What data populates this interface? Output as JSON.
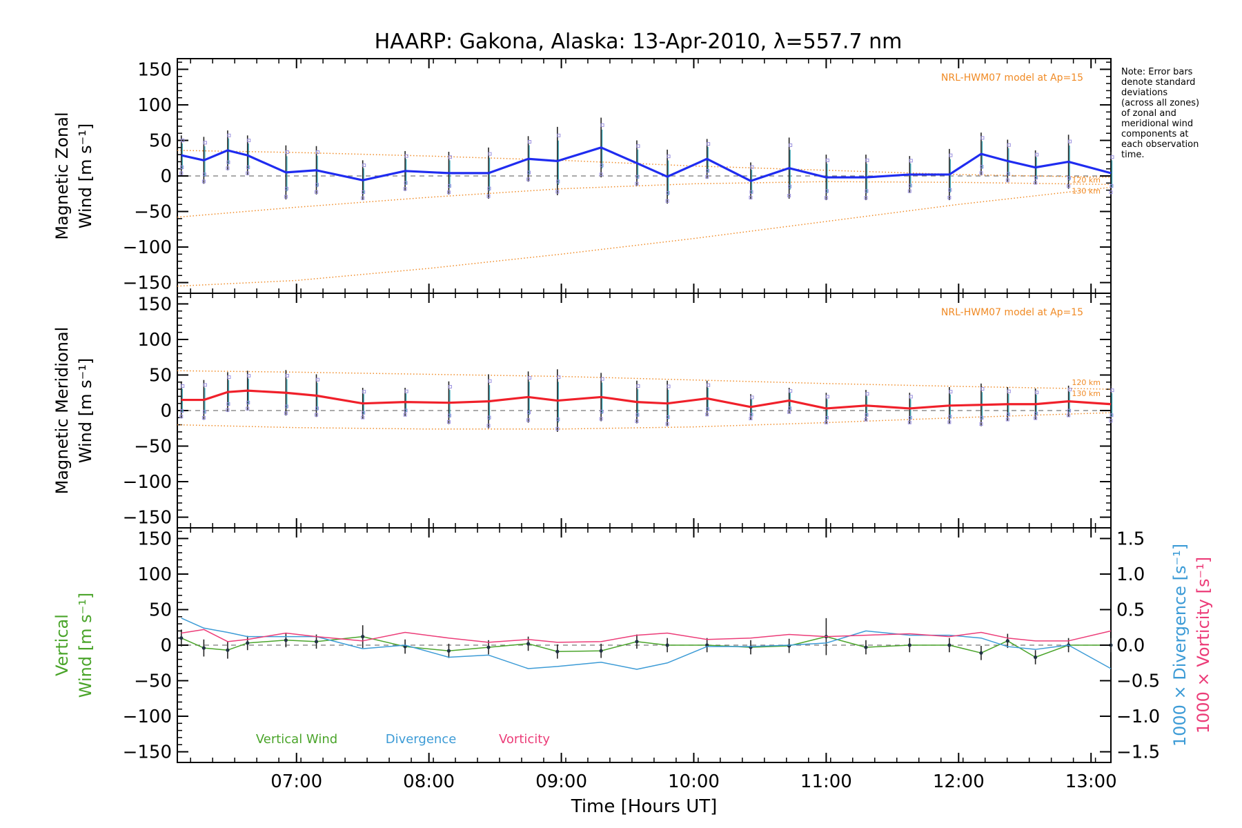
{
  "title": "HAARP: Gakona,  Alaska: 13-Apr-2010, λ=557.7 nm",
  "note": "Note: Error bars\ndenote standard\ndeviations\n(across all zones)\nof zonal and\nmeridional wind\ncomponents at\neach observation\ntime.",
  "colors": {
    "zonal": "#1f2cf0",
    "meridional": "#f0202a",
    "model": "#f08a24",
    "vertical": "#4aa42a",
    "divergence": "#3c9bd6",
    "vorticity": "#ec3c78",
    "errorbar": "#222222",
    "zone_points": "#9a90e0"
  },
  "chart_data": [
    {
      "type": "line",
      "panel": "zonal",
      "ylabel": "Magnetic Zonal",
      "ylabel2": "Wind",
      "yunit": "[m s⁻¹]",
      "ylim": [
        -165,
        165
      ],
      "yticks": [
        -150,
        -100,
        -50,
        0,
        50,
        100,
        150
      ],
      "xlim": [
        6.1,
        13.15
      ],
      "model_label": "NRL-HWM07 model at Ap=15",
      "model_alt_labels": [
        "120 km",
        "130 km"
      ],
      "x": [
        6.13,
        6.3,
        6.48,
        6.63,
        6.92,
        7.15,
        7.5,
        7.82,
        8.15,
        8.45,
        8.75,
        8.97,
        9.3,
        9.57,
        9.8,
        10.1,
        10.43,
        10.72,
        11.0,
        11.3,
        11.63,
        11.93,
        12.17,
        12.37,
        12.58,
        12.83,
        13.15
      ],
      "series": [
        {
          "values": [
            29,
            22,
            36,
            29,
            5,
            8,
            -6,
            7,
            4,
            4,
            24,
            21,
            40,
            18,
            -1,
            24,
            -7,
            11,
            -2,
            -2,
            2,
            2,
            31,
            21,
            12,
            20,
            4
          ],
          "error": [
            28,
            33,
            28,
            28,
            38,
            34,
            28,
            28,
            30,
            36,
            32,
            48,
            42,
            32,
            38,
            28,
            26,
            43,
            32,
            32,
            26,
            36,
            30,
            30,
            24,
            38,
            30
          ]
        }
      ],
      "models": [
        {
          "x": [
            6.1,
            7.0,
            8.0,
            9.0,
            10.0,
            11.0,
            12.0,
            13.15
          ],
          "values": [
            36,
            33,
            28,
            22,
            14,
            8,
            2,
            -2
          ]
        },
        {
          "x": [
            6.1,
            7.0,
            8.0,
            9.0,
            10.0,
            11.0,
            12.0,
            13.15
          ],
          "values": [
            -58,
            -44,
            -30,
            -18,
            -11,
            -8,
            -9,
            -12
          ]
        },
        {
          "x": [
            6.1,
            7.0,
            8.0,
            9.0,
            10.0,
            11.0,
            12.0,
            13.15
          ],
          "values": [
            -155,
            -147,
            -130,
            -110,
            -88,
            -64,
            -40,
            -16
          ]
        }
      ]
    },
    {
      "type": "line",
      "panel": "meridional",
      "ylabel": "Magnetic Meridional",
      "ylabel2": "Wind",
      "yunit": "[m s⁻¹]",
      "ylim": [
        -165,
        165
      ],
      "yticks": [
        -150,
        -100,
        -50,
        0,
        50,
        100,
        150
      ],
      "xlim": [
        6.1,
        13.15
      ],
      "model_label": "NRL-HWM07 model at Ap=15",
      "model_alt_labels": [
        "120 km",
        "130 km"
      ],
      "x": [
        6.13,
        6.3,
        6.48,
        6.63,
        6.92,
        7.15,
        7.5,
        7.82,
        8.15,
        8.45,
        8.75,
        8.97,
        9.3,
        9.57,
        9.8,
        10.1,
        10.43,
        10.72,
        11.0,
        11.3,
        11.63,
        11.93,
        12.17,
        12.37,
        12.58,
        12.83,
        13.15
      ],
      "series": [
        {
          "values": [
            15,
            15,
            26,
            28,
            25,
            21,
            10,
            12,
            11,
            13,
            19,
            14,
            19,
            12,
            10,
            17,
            5,
            14,
            3,
            7,
            3,
            7,
            8,
            9,
            9,
            13,
            9
          ],
          "error": [
            26,
            28,
            28,
            28,
            32,
            30,
            22,
            20,
            30,
            38,
            36,
            44,
            34,
            30,
            32,
            25,
            18,
            18,
            22,
            22,
            22,
            26,
            30,
            24,
            22,
            22,
            26
          ]
        }
      ],
      "models": [
        {
          "x": [
            6.1,
            7.0,
            8.0,
            9.0,
            10.0,
            11.0,
            12.0,
            13.15
          ],
          "values": [
            56,
            54,
            51,
            48,
            43,
            38,
            34,
            30
          ]
        },
        {
          "x": [
            6.1,
            7.0,
            8.0,
            9.0,
            10.0,
            11.0,
            12.0,
            13.15
          ],
          "values": [
            -20,
            -24,
            -26,
            -26,
            -23,
            -17,
            -10,
            -3
          ]
        }
      ]
    },
    {
      "type": "line",
      "panel": "vertical",
      "ylabel": "Vertical",
      "ylabel2": "Wind [m s⁻¹]",
      "ylabel_right1": "1000 × Divergence [s⁻¹]",
      "ylabel_right2": "1000 × Vorticity [s⁻¹]",
      "ylim": [
        -165,
        165
      ],
      "yticks": [
        -150,
        -100,
        -50,
        0,
        50,
        100,
        150
      ],
      "y2lim": [
        -1.65,
        1.65
      ],
      "y2ticks": [
        -1.5,
        -1.0,
        -0.5,
        0.0,
        0.5,
        1.0,
        1.5
      ],
      "y2ticklabels": [
        "−1.5",
        "−1.0",
        "−0.5",
        "0.0",
        "0.5",
        "1.0",
        "1.5"
      ],
      "xlim": [
        6.1,
        13.15
      ],
      "xticks": [
        7,
        8,
        9,
        10,
        11,
        12,
        13
      ],
      "xticklabels": [
        "07:00",
        "08:00",
        "09:00",
        "10:00",
        "11:00",
        "12:00",
        "13:00"
      ],
      "xlabel": "Time [Hours UT]",
      "x": [
        6.13,
        6.3,
        6.48,
        6.63,
        6.92,
        7.15,
        7.5,
        7.82,
        8.15,
        8.45,
        8.75,
        8.97,
        9.3,
        9.57,
        9.8,
        10.1,
        10.43,
        10.72,
        11.0,
        11.3,
        11.63,
        11.93,
        12.17,
        12.37,
        12.58,
        12.83,
        13.15
      ],
      "series": [
        {
          "name": "Vertical Wind",
          "values": [
            10,
            -4,
            -7,
            3,
            7,
            5,
            12,
            -2,
            -8,
            -3,
            2,
            -9,
            -8,
            5,
            0,
            0,
            -3,
            -1,
            12,
            -3,
            0,
            0,
            -11,
            6,
            -17,
            0,
            0
          ],
          "error": [
            12,
            12,
            12,
            10,
            10,
            10,
            16,
            10,
            10,
            10,
            10,
            10,
            10,
            10,
            10,
            10,
            10,
            10,
            26,
            10,
            10,
            10,
            10,
            10,
            10,
            10,
            10
          ]
        },
        {
          "name": "Divergence",
          "values": [
            0.38,
            0.24,
            0.18,
            0.12,
            0.12,
            0.12,
            -0.05,
            0.0,
            -0.17,
            -0.14,
            -0.33,
            -0.3,
            -0.24,
            -0.34,
            -0.25,
            -0.02,
            -0.02,
            0.0,
            0.03,
            0.2,
            0.14,
            0.14,
            0.1,
            -0.02,
            -0.06,
            0.0,
            -0.33
          ]
        },
        {
          "name": "Vorticity",
          "values": [
            0.17,
            0.22,
            0.05,
            0.08,
            0.17,
            0.12,
            0.06,
            0.18,
            0.1,
            0.04,
            0.08,
            0.04,
            0.05,
            0.14,
            0.17,
            0.08,
            0.1,
            0.15,
            0.12,
            0.14,
            0.16,
            0.12,
            0.18,
            0.1,
            0.06,
            0.06,
            0.2
          ]
        }
      ]
    }
  ]
}
